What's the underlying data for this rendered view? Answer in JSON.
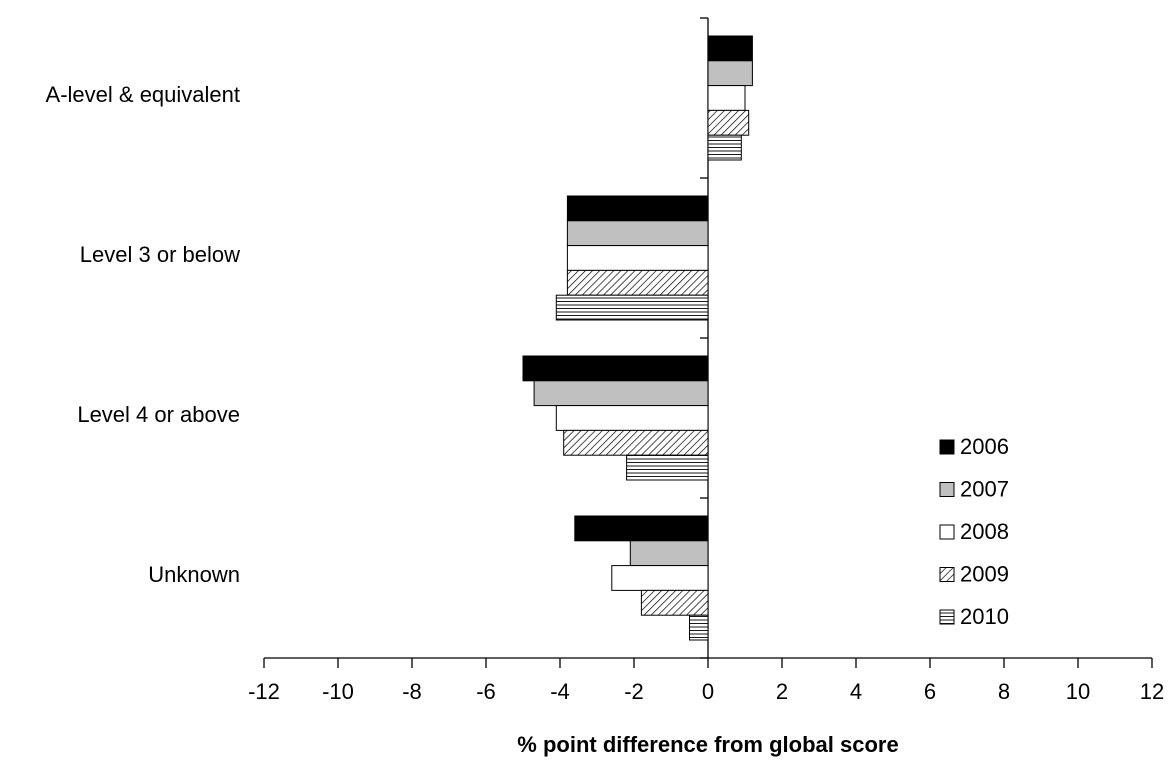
{
  "chart_data": {
    "type": "hbar",
    "x_label": "% point difference from global score",
    "categories": [
      "A-level & equivalent",
      "Level 3 or below",
      "Level 4 or above",
      "Unknown"
    ],
    "series": [
      {
        "name": "2006",
        "color": "#000000",
        "values": [
          1.2,
          -3.8,
          -5.0,
          -3.6
        ]
      },
      {
        "name": "2007",
        "color": "#c0c0c0",
        "values": [
          1.2,
          -3.8,
          -4.7,
          -2.1
        ]
      },
      {
        "name": "2008",
        "color": "#ffffff",
        "values": [
          1.0,
          -3.8,
          -4.1,
          -2.6
        ]
      },
      {
        "name": "2009",
        "color": "#ffffff",
        "pattern": "diagonal",
        "values": [
          1.1,
          -3.8,
          -3.9,
          -1.8
        ]
      },
      {
        "name": "2010",
        "color": "#ffffff",
        "pattern": "horizontal",
        "values": [
          0.9,
          -4.1,
          -2.2,
          -0.5
        ]
      }
    ],
    "xlim": [
      -12,
      12
    ],
    "xticks": [
      -12,
      -10,
      -8,
      -6,
      -4,
      -2,
      0,
      2,
      4,
      6,
      8,
      10,
      12
    ],
    "legend": "lower right"
  }
}
